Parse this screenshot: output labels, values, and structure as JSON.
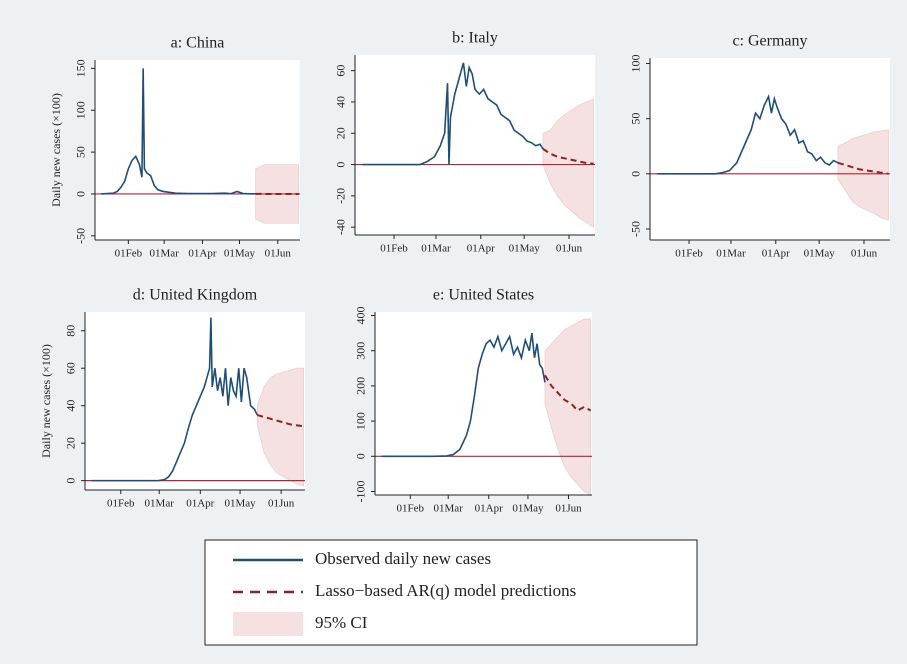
{
  "chart_data": [
    {
      "type": "line",
      "title": "a: China",
      "ylabel": "Daily new cases (×100)",
      "xlim": [
        5,
        171
      ],
      "xticks": [
        {
          "value": 32,
          "label": "01Feb"
        },
        {
          "value": 61,
          "label": "01Mar"
        },
        {
          "value": 92,
          "label": "01Apr"
        },
        {
          "value": 122,
          "label": "01May"
        },
        {
          "value": 153,
          "label": "01Jun"
        }
      ],
      "ylim": [
        -55,
        160
      ],
      "yticks": [
        -50,
        0,
        50,
        100,
        150
      ],
      "refline": {
        "value": 0,
        "color": "#b0243c"
      },
      "band": {
        "x": [
          135,
          142,
          149,
          156,
          163,
          170
        ],
        "lower": [
          -30,
          -35,
          -35,
          -35,
          -35,
          -35
        ],
        "upper": [
          30,
          35,
          35,
          35,
          35,
          35
        ],
        "color": "#f5e1e1"
      },
      "series": [
        {
          "x": [
            10,
            15,
            20,
            23,
            26,
            29,
            32,
            35,
            38,
            41,
            43,
            44,
            45,
            47,
            50,
            53,
            56,
            60,
            65,
            70,
            80,
            90,
            100,
            110,
            115,
            120,
            125,
            130,
            135
          ],
          "values": [
            0,
            0.5,
            1,
            3,
            8,
            15,
            30,
            40,
            45,
            35,
            20,
            150,
            30,
            25,
            22,
            10,
            5,
            3,
            2,
            1,
            0.5,
            0.5,
            0.5,
            1,
            0.3,
            3,
            0.5,
            0.2,
            0.1
          ],
          "color": "#1f4e79"
        },
        {
          "x": [
            135,
            142,
            149,
            156,
            163,
            170
          ],
          "values": [
            0.1,
            0,
            0,
            0,
            0,
            0
          ],
          "color": "#8b2323",
          "dashed": true
        }
      ]
    },
    {
      "type": "line",
      "title": "b: Italy",
      "xlim": [
        5,
        171
      ],
      "xticks": [
        {
          "value": 32,
          "label": "01Feb"
        },
        {
          "value": 61,
          "label": "01Mar"
        },
        {
          "value": 92,
          "label": "01Apr"
        },
        {
          "value": 122,
          "label": "01May"
        },
        {
          "value": 153,
          "label": "01Jun"
        }
      ],
      "ylim": [
        -45,
        70
      ],
      "yticks": [
        -40,
        -20,
        0,
        20,
        40,
        60
      ],
      "refline": {
        "value": 0,
        "color": "#b0243c"
      },
      "band": {
        "x": [
          135,
          140,
          145,
          150,
          155,
          160,
          165,
          170
        ],
        "lower": [
          0,
          -12,
          -20,
          -26,
          -30,
          -34,
          -37,
          -40
        ],
        "upper": [
          20,
          22,
          28,
          32,
          35,
          38,
          40,
          42
        ],
        "color": "#f5e1e1"
      },
      "series": [
        {
          "x": [
            10,
            50,
            55,
            60,
            64,
            67,
            69,
            70,
            71,
            74,
            77,
            80,
            82,
            84,
            86,
            88,
            91,
            94,
            97,
            100,
            103,
            106,
            109,
            112,
            115,
            118,
            121,
            124,
            127,
            130,
            133,
            135
          ],
          "values": [
            0,
            0,
            2,
            5,
            12,
            20,
            52,
            0,
            30,
            45,
            55,
            65,
            50,
            62,
            58,
            48,
            45,
            48,
            42,
            40,
            38,
            32,
            30,
            28,
            22,
            20,
            18,
            15,
            14,
            12,
            13,
            10
          ],
          "color": "#1f4e79"
        },
        {
          "x": [
            135,
            140,
            145,
            150,
            155,
            160,
            165,
            170
          ],
          "values": [
            10,
            7,
            5,
            4,
            3,
            2,
            1,
            0.5
          ],
          "color": "#8b2323",
          "dashed": true
        }
      ]
    },
    {
      "type": "line",
      "title": "c: Germany",
      "xlim": [
        5,
        171
      ],
      "xticks": [
        {
          "value": 32,
          "label": "01Feb"
        },
        {
          "value": 61,
          "label": "01Mar"
        },
        {
          "value": 92,
          "label": "01Apr"
        },
        {
          "value": 122,
          "label": "01May"
        },
        {
          "value": 153,
          "label": "01Jun"
        }
      ],
      "ylim": [
        -60,
        105
      ],
      "yticks": [
        -50,
        0,
        50,
        100
      ],
      "refline": {
        "value": 0,
        "color": "#b0243c"
      },
      "band": {
        "x": [
          135,
          140,
          145,
          150,
          155,
          160,
          165,
          170
        ],
        "lower": [
          -5,
          -15,
          -25,
          -30,
          -33,
          -36,
          -40,
          -42
        ],
        "upper": [
          25,
          28,
          32,
          34,
          36,
          38,
          39,
          40
        ],
        "color": "#f5e1e1"
      },
      "series": [
        {
          "x": [
            10,
            50,
            55,
            60,
            65,
            70,
            75,
            78,
            81,
            84,
            87,
            89,
            91,
            93,
            96,
            99,
            102,
            105,
            108,
            111,
            114,
            117,
            120,
            123,
            126,
            129,
            132,
            135
          ],
          "values": [
            0,
            0,
            1,
            3,
            10,
            25,
            40,
            55,
            50,
            62,
            70,
            55,
            68,
            60,
            50,
            45,
            35,
            40,
            28,
            30,
            20,
            18,
            12,
            15,
            10,
            8,
            12,
            10
          ],
          "color": "#1f4e79"
        },
        {
          "x": [
            135,
            140,
            145,
            150,
            155,
            160,
            165,
            170
          ],
          "values": [
            10,
            8,
            6,
            4,
            3,
            2,
            1,
            0
          ],
          "color": "#8b2323",
          "dashed": true
        }
      ]
    },
    {
      "type": "line",
      "title": "d: United Kingdom",
      "ylabel": "Daily new cases (×100)",
      "xlim": [
        5,
        171
      ],
      "xticks": [
        {
          "value": 32,
          "label": "01Feb"
        },
        {
          "value": 61,
          "label": "01Mar"
        },
        {
          "value": 92,
          "label": "01Apr"
        },
        {
          "value": 122,
          "label": "01May"
        },
        {
          "value": 153,
          "label": "01Jun"
        }
      ],
      "ylim": [
        -5,
        90
      ],
      "yticks": [
        0,
        20,
        40,
        60,
        80
      ],
      "refline": {
        "value": 0,
        "color": "#b0243c"
      },
      "band": {
        "x": [
          135,
          140,
          145,
          150,
          155,
          160,
          165,
          170
        ],
        "lower": [
          30,
          15,
          8,
          4,
          2,
          0,
          -2,
          -3
        ],
        "upper": [
          40,
          50,
          55,
          57,
          58,
          59,
          60,
          60
        ],
        "color": "#f5e1e1"
      },
      "series": [
        {
          "x": [
            10,
            60,
            65,
            68,
            71,
            74,
            77,
            80,
            83,
            86,
            89,
            92,
            95,
            97,
            99,
            100,
            101,
            103,
            105,
            107,
            109,
            111,
            113,
            115,
            117,
            119,
            121,
            123,
            125,
            127,
            130,
            133,
            135
          ],
          "values": [
            0,
            0,
            0.5,
            2,
            5,
            10,
            15,
            20,
            28,
            35,
            40,
            45,
            50,
            55,
            60,
            87,
            50,
            60,
            48,
            55,
            45,
            60,
            40,
            55,
            48,
            45,
            60,
            42,
            60,
            55,
            40,
            38,
            35
          ],
          "color": "#1f4e79"
        },
        {
          "x": [
            135,
            140,
            145,
            150,
            155,
            160,
            165,
            170
          ],
          "values": [
            35,
            34,
            33,
            32,
            31,
            30,
            29.5,
            29
          ],
          "color": "#8b2323",
          "dashed": true
        }
      ]
    },
    {
      "type": "line",
      "title": "e: United States",
      "xlim": [
        5,
        171
      ],
      "xticks": [
        {
          "value": 32,
          "label": "01Feb"
        },
        {
          "value": 61,
          "label": "01Mar"
        },
        {
          "value": 92,
          "label": "01Apr"
        },
        {
          "value": 122,
          "label": "01May"
        },
        {
          "value": 153,
          "label": "01Jun"
        }
      ],
      "ylim": [
        -110,
        410
      ],
      "yticks": [
        -100,
        0,
        100,
        200,
        300,
        400
      ],
      "refline": {
        "value": 0,
        "color": "#b0243c"
      },
      "band": {
        "x": [
          135,
          140,
          145,
          150,
          155,
          160,
          165,
          170
        ],
        "lower": [
          150,
          80,
          20,
          -30,
          -60,
          -80,
          -100,
          -110
        ],
        "upper": [
          300,
          320,
          340,
          360,
          370,
          380,
          390,
          390
        ],
        "color": "#f5e1e1"
      },
      "series": [
        {
          "x": [
            10,
            50,
            60,
            65,
            70,
            75,
            78,
            81,
            84,
            87,
            90,
            93,
            96,
            99,
            102,
            105,
            108,
            111,
            114,
            117,
            120,
            123,
            125,
            127,
            129,
            131,
            133,
            135
          ],
          "values": [
            0,
            0,
            1,
            5,
            20,
            60,
            100,
            170,
            250,
            290,
            320,
            330,
            310,
            340,
            300,
            320,
            340,
            290,
            310,
            280,
            330,
            300,
            350,
            280,
            320,
            260,
            250,
            210
          ],
          "color": "#1f4e79"
        },
        {
          "x": [
            135,
            140,
            145,
            150,
            155,
            160,
            165,
            170
          ],
          "values": [
            230,
            200,
            180,
            160,
            150,
            130,
            140,
            130
          ],
          "color": "#8b2323",
          "dashed": true
        }
      ]
    }
  ],
  "legend": [
    {
      "name": "Observed daily new cases",
      "color": "#1f4e79",
      "style": "solid"
    },
    {
      "name": "Lasso−based AR(q) model predictions",
      "color": "#8b2323",
      "style": "dashed"
    },
    {
      "name": "95% CI",
      "color": "#f5e1e1",
      "style": "area"
    }
  ]
}
